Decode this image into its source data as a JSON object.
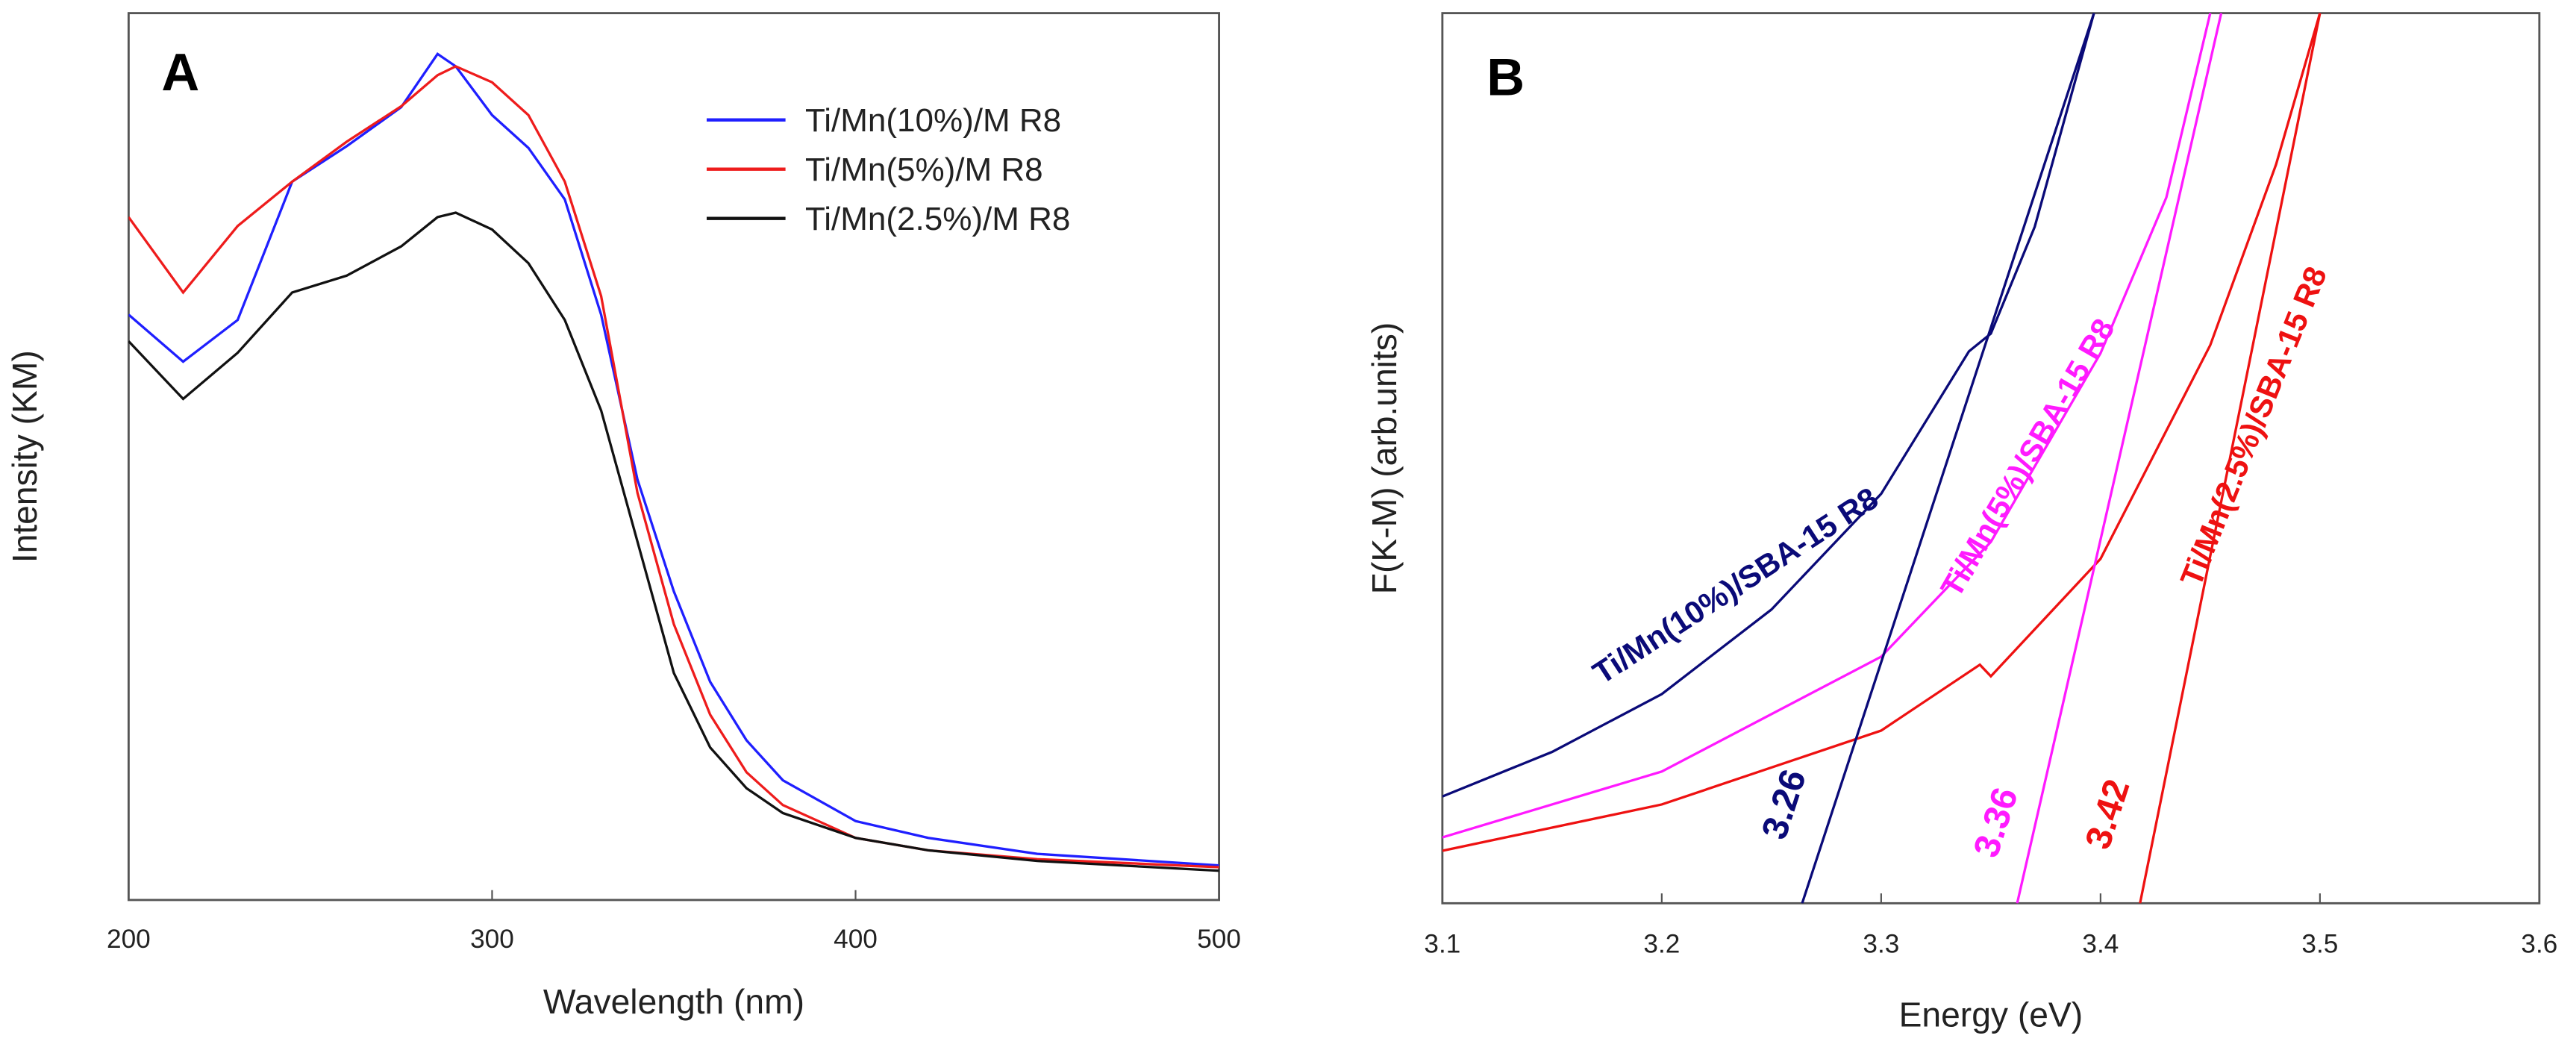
{
  "chart_data": [
    {
      "type": "line",
      "annotation": "A",
      "xlabel": "Wavelength (nm)",
      "ylabel": "Intensity (KM)",
      "xlim": [
        200,
        500
      ],
      "xticks": [
        200,
        300,
        400,
        500
      ],
      "ylim": [
        0,
        1
      ],
      "legend": "upper right",
      "x": [
        200,
        215,
        230,
        245,
        260,
        275,
        285,
        290,
        300,
        310,
        320,
        330,
        340,
        350,
        360,
        370,
        380,
        400,
        420,
        450,
        500
      ],
      "series": [
        {
          "name": "Ti/Mn(10%)/M R8",
          "color": "#1f1fff",
          "values": [
            0.66,
            0.607,
            0.654,
            0.81,
            0.85,
            0.894,
            0.954,
            0.94,
            0.885,
            0.848,
            0.79,
            0.66,
            0.474,
            0.348,
            0.246,
            0.18,
            0.135,
            0.089,
            0.07,
            0.052,
            0.039
          ]
        },
        {
          "name": "Ti/Mn(5%)/M R8",
          "color": "#ee1c1c",
          "values": [
            0.77,
            0.685,
            0.76,
            0.81,
            0.855,
            0.895,
            0.93,
            0.94,
            0.922,
            0.885,
            0.81,
            0.681,
            0.459,
            0.311,
            0.209,
            0.144,
            0.107,
            0.07,
            0.056,
            0.046,
            0.037
          ]
        },
        {
          "name": "Ti/Mn(2.5%)/M R8",
          "color": "#111111",
          "values": [
            0.63,
            0.565,
            0.617,
            0.685,
            0.704,
            0.737,
            0.77,
            0.775,
            0.756,
            0.718,
            0.654,
            0.552,
            0.404,
            0.256,
            0.172,
            0.126,
            0.098,
            0.07,
            0.056,
            0.044,
            0.033
          ]
        }
      ]
    },
    {
      "type": "line",
      "annotation": "B",
      "xlabel": "Energy (eV)",
      "ylabel": "F(K-M) (arb.units)",
      "xlim": [
        3.1,
        3.6
      ],
      "xticks": [
        3.1,
        3.2,
        3.3,
        3.4,
        3.5,
        3.6
      ],
      "ylim": [
        0,
        1
      ],
      "series": [
        {
          "name": "Ti/Mn(10%)/SBA-15 R8",
          "color": "#0a0a78",
          "x": [
            3.1,
            3.15,
            3.2,
            3.25,
            3.3,
            3.34,
            3.35,
            3.37,
            3.397
          ],
          "values": [
            0.12,
            0.17,
            0.235,
            0.33,
            0.46,
            0.62,
            0.64,
            0.76,
            1.0
          ]
        },
        {
          "name": "Ti/Mn(5%)/SBA-15 R8",
          "color": "#ff1aff",
          "x": [
            3.1,
            3.2,
            3.3,
            3.35,
            3.4,
            3.43,
            3.45
          ],
          "values": [
            0.074,
            0.148,
            0.277,
            0.406,
            0.618,
            0.793,
            1.0
          ]
        },
        {
          "name": "Ti/Mn(2.5%)/SBA-15 R8",
          "color": "#ee1111",
          "x": [
            3.1,
            3.2,
            3.3,
            3.345,
            3.35,
            3.4,
            3.45,
            3.48,
            3.5
          ],
          "values": [
            0.059,
            0.111,
            0.194,
            0.268,
            0.255,
            0.387,
            0.627,
            0.83,
            1.0
          ]
        }
      ],
      "fits": [
        {
          "label": "3.26",
          "color": "#0a0a78",
          "x": [
            3.264,
            3.397
          ],
          "values": [
            0,
            1
          ]
        },
        {
          "label": "3.36",
          "color": "#ff1aff",
          "x": [
            3.362,
            3.455
          ],
          "values": [
            0,
            1
          ]
        },
        {
          "label": "3.42",
          "color": "#ee1111",
          "x": [
            3.418,
            3.5
          ],
          "values": [
            0,
            1
          ]
        }
      ]
    }
  ]
}
